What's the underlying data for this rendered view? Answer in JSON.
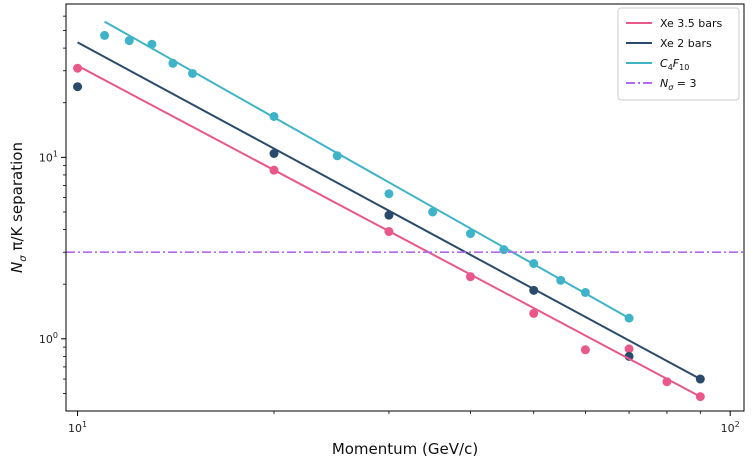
{
  "chart_data": {
    "type": "scatter",
    "xscale": "log",
    "yscale": "log",
    "xlim": [
      9.6,
      105
    ],
    "ylim": [
      0.4,
      70
    ],
    "xlabel": "Momentum (GeV/c)",
    "ylabel": "N_σ π/K separation",
    "grid": false,
    "legend_position": "top-right",
    "x_ticks": [
      {
        "value": 10,
        "base": "10",
        "exp": "1"
      },
      {
        "value": 100,
        "base": "10",
        "exp": "2"
      }
    ],
    "y_ticks": [
      {
        "value": 1,
        "base": "10",
        "exp": "0"
      },
      {
        "value": 10,
        "base": "10",
        "exp": "1"
      }
    ],
    "series": [
      {
        "name": "Xe 3.5 bars",
        "color": "#e8588a",
        "fit": {
          "x": [
            10,
            90
          ],
          "y": [
            32,
            0.48
          ]
        },
        "points": [
          {
            "x": 10,
            "y": 31
          },
          {
            "x": 20,
            "y": 8.5
          },
          {
            "x": 30,
            "y": 3.9
          },
          {
            "x": 40,
            "y": 2.2
          },
          {
            "x": 50,
            "y": 1.38
          },
          {
            "x": 60,
            "y": 0.87
          },
          {
            "x": 70,
            "y": 0.88
          },
          {
            "x": 80,
            "y": 0.58
          },
          {
            "x": 90,
            "y": 0.48
          }
        ]
      },
      {
        "name": "Xe 2 bars",
        "color": "#2a4a6b",
        "fit": {
          "x": [
            10,
            90
          ],
          "y": [
            43,
            0.6
          ]
        },
        "points": [
          {
            "x": 10,
            "y": 24.5
          },
          {
            "x": 20,
            "y": 10.5
          },
          {
            "x": 30,
            "y": 4.8
          },
          {
            "x": 50,
            "y": 1.85
          },
          {
            "x": 70,
            "y": 0.8
          },
          {
            "x": 90,
            "y": 0.6
          }
        ]
      },
      {
        "name": "C4F10",
        "label_base": "C",
        "label_sub1": "4",
        "label_mid": "F",
        "label_sub2": "10",
        "color": "#3fb4c8",
        "fit": {
          "x": [
            11,
            70
          ],
          "y": [
            56,
            1.3
          ]
        },
        "points": [
          {
            "x": 11,
            "y": 47
          },
          {
            "x": 12,
            "y": 44
          },
          {
            "x": 13,
            "y": 42
          },
          {
            "x": 14,
            "y": 33
          },
          {
            "x": 15,
            "y": 29
          },
          {
            "x": 20,
            "y": 16.8
          },
          {
            "x": 25,
            "y": 10.2
          },
          {
            "x": 30,
            "y": 6.3
          },
          {
            "x": 35,
            "y": 5
          },
          {
            "x": 40,
            "y": 3.8
          },
          {
            "x": 45,
            "y": 3.1
          },
          {
            "x": 50,
            "y": 2.6
          },
          {
            "x": 55,
            "y": 2.1
          },
          {
            "x": 60,
            "y": 1.8
          },
          {
            "x": 70,
            "y": 1.3
          }
        ]
      }
    ],
    "reference_line": {
      "name": "N_σ = 3",
      "label_base": "N",
      "label_sub": "σ",
      "label_rest": " = 3",
      "y": 3,
      "color": "#b368f0",
      "style": "dashdot"
    }
  }
}
